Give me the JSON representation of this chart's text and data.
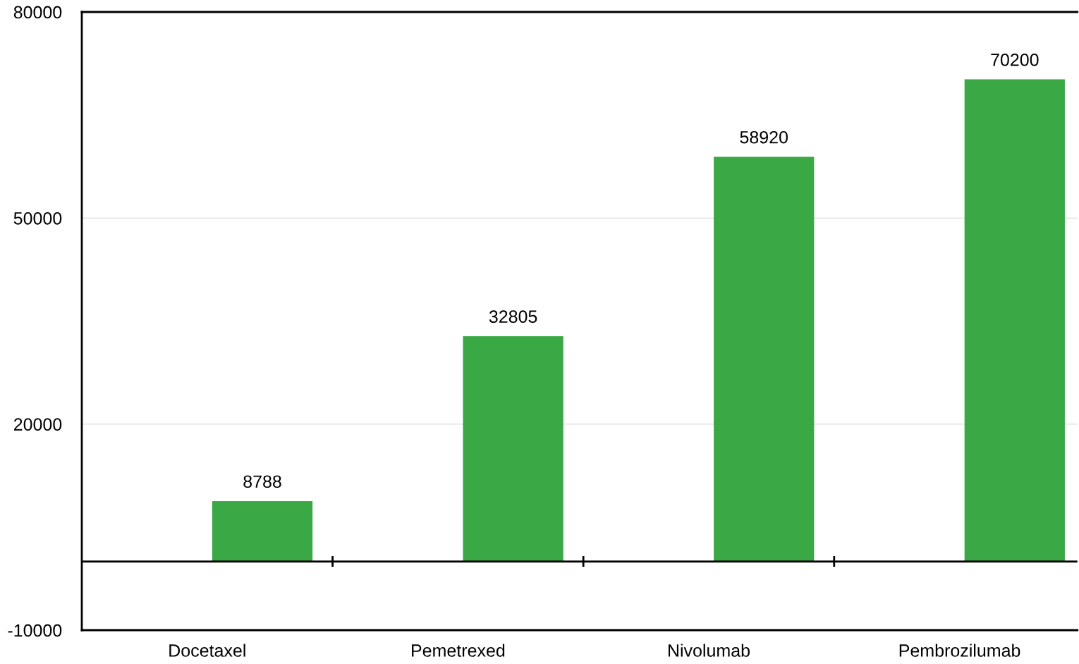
{
  "chart_data": {
    "type": "bar",
    "categories": [
      "Docetaxel",
      "Pemetrexed",
      "Nivolumab",
      "Pembrozilumab"
    ],
    "values": [
      8788,
      32805,
      58920,
      70200
    ],
    "color": "#3aa845",
    "ylim": [
      -10000,
      80000
    ],
    "yticks": [
      -10000,
      20000,
      50000,
      80000
    ],
    "grid": "y",
    "data_labels": true,
    "ref_lines": [
      {
        "axis": "y",
        "value": 0,
        "color": "#000000"
      }
    ]
  }
}
